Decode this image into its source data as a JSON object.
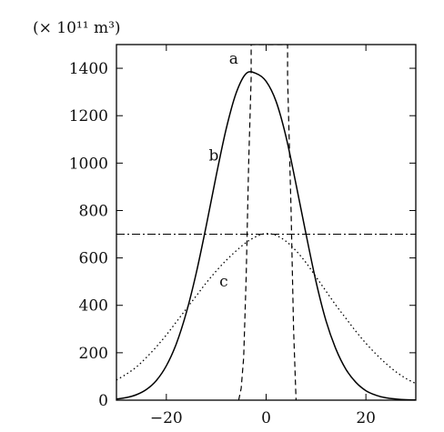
{
  "chart_data": {
    "type": "line",
    "ylabel": "(× 10¹¹ m³)",
    "xlim": [
      -30,
      30
    ],
    "ylim": [
      0,
      1500
    ],
    "x_ticks": [
      -20,
      0,
      20
    ],
    "x_tick_labels": [
      "−20",
      "0",
      "20"
    ],
    "y_ticks": [
      0,
      200,
      400,
      600,
      800,
      1000,
      1200,
      1400
    ],
    "y_tick_labels": [
      "0",
      "200",
      "400",
      "600",
      "800",
      "1000",
      "1200",
      "1400"
    ],
    "grid": false,
    "series": [
      {
        "name": "b",
        "style": "solid",
        "x": [
          -30,
          -28,
          -26,
          -24,
          -22,
          -20,
          -18,
          -16,
          -14,
          -12,
          -10,
          -8,
          -6,
          -4,
          -2,
          0,
          2,
          4,
          6,
          8,
          10,
          12,
          14,
          16,
          18,
          20,
          22,
          24,
          26,
          28,
          30
        ],
        "y": [
          5,
          11,
          23,
          45,
          83,
          145,
          238,
          369,
          537,
          736,
          948,
          1145,
          1296,
          1378,
          1378,
          1345,
          1260,
          1110,
          910,
          700,
          500,
          335,
          215,
          130,
          75,
          40,
          21,
          10,
          5,
          2,
          1
        ]
      },
      {
        "name": "c",
        "style": "dotted",
        "x": [
          -30,
          -28,
          -26,
          -24,
          -22,
          -20,
          -18,
          -16,
          -14,
          -12,
          -10,
          -8,
          -6,
          -4,
          -2,
          0,
          2,
          4,
          6,
          8,
          10,
          12,
          14,
          16,
          18,
          20,
          22,
          24,
          26,
          28,
          30
        ],
        "y": [
          85,
          110,
          140,
          180,
          225,
          275,
          330,
          385,
          440,
          495,
          545,
          590,
          630,
          665,
          690,
          703,
          695,
          670,
          630,
          580,
          520,
          460,
          400,
          345,
          290,
          240,
          195,
          155,
          120,
          92,
          70
        ]
      },
      {
        "name": "a",
        "style": "dashed",
        "x": [
          -5.5,
          -5,
          -4.5,
          -4,
          -3.5,
          -3,
          -3,
          4.3,
          4.3,
          5,
          5.5,
          6
        ],
        "y": [
          0,
          50,
          180,
          520,
          1000,
          1360,
          1500,
          1500,
          1360,
          800,
          300,
          0
        ]
      }
    ],
    "reference_lines": [
      {
        "style": "dash-dot",
        "orientation": "horizontal",
        "y": 700
      }
    ],
    "annotations": [
      {
        "text": "a",
        "x": -6.5,
        "y": 1420
      },
      {
        "text": "b",
        "x": -10.5,
        "y": 1010
      },
      {
        "text": "c",
        "x": -8.5,
        "y": 480
      }
    ]
  }
}
